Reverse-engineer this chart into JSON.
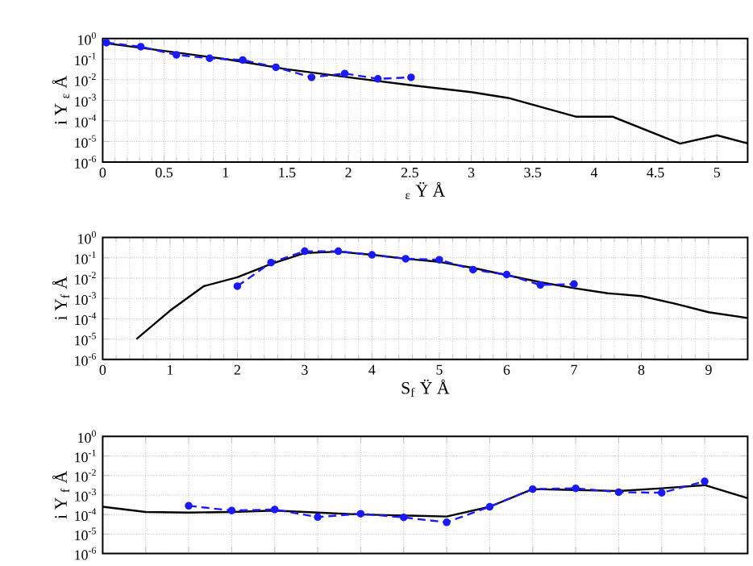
{
  "chart_data": [
    {
      "type": "line",
      "xlabel": "$_{ε}$ Ÿ Å",
      "ylabel": "i Y $_{ε}$ Å",
      "log": "y",
      "grid": true,
      "xlim": [
        0,
        5.25
      ],
      "xticks": [
        0,
        0.5,
        1,
        1.5,
        2,
        2.5,
        3,
        3.5,
        4,
        4.5,
        5
      ],
      "ylim": [
        1e-06,
        1
      ],
      "yticks": [
        {
          "value": 1,
          "label": "10$^{0}$"
        },
        {
          "value": 0.1,
          "label": "10$^{-1}$"
        },
        {
          "value": 0.01,
          "label": "10$^{-2}$"
        },
        {
          "value": 0.001,
          "label": "10$^{-3}$"
        },
        {
          "value": 0.0001,
          "label": "10$^{-4}$"
        },
        {
          "value": 1e-05,
          "label": "10$^{-5}$"
        },
        {
          "value": 1e-06,
          "label": "10$^{-6}$"
        }
      ],
      "series": [
        {
          "color": "#000000",
          "marker": "none",
          "line_style": "solid",
          "x": [
            0,
            0.5,
            1,
            1.5,
            2,
            2.5,
            3,
            3.3,
            3.85,
            4.15,
            4.7,
            5,
            5.25
          ],
          "values": [
            0.62,
            0.25,
            0.1,
            0.032,
            0.013,
            0.0055,
            0.0025,
            0.0013,
            0.00016,
            0.00016,
            7.9e-06,
            2e-05,
            8e-06
          ]
        },
        {
          "color": "#1a1aff",
          "marker": "circle",
          "line_style": "dashed",
          "x": [
            0.03,
            0.31,
            0.6,
            0.87,
            1.14,
            1.41,
            1.7,
            1.97,
            2.24,
            2.51
          ],
          "values": [
            0.63,
            0.4,
            0.16,
            0.11,
            0.09,
            0.04,
            0.013,
            0.02,
            0.011,
            0.013
          ]
        }
      ]
    },
    {
      "type": "line",
      "xlabel": "S$_{f}$ Ÿ Å",
      "ylabel": "i Y$_{f}$ Å",
      "log": "y",
      "grid": true,
      "xlim": [
        0,
        9.58
      ],
      "xticks": [
        0,
        1,
        2,
        3,
        4,
        5,
        6,
        7,
        8,
        9
      ],
      "ylim": [
        1e-06,
        1
      ],
      "yticks": [
        {
          "value": 1,
          "label": "10$^{0}$"
        },
        {
          "value": 0.1,
          "label": "10$^{-1}$"
        },
        {
          "value": 0.01,
          "label": "10$^{-2}$"
        },
        {
          "value": 0.001,
          "label": "10$^{-3}$"
        },
        {
          "value": 0.0001,
          "label": "10$^{-4}$"
        },
        {
          "value": 1e-05,
          "label": "10$^{-5}$"
        },
        {
          "value": 1e-06,
          "label": "10$^{-6}$"
        }
      ],
      "series": [
        {
          "color": "#000000",
          "marker": "none",
          "line_style": "solid",
          "x": [
            0.5,
            1,
            1.5,
            2,
            2.5,
            3,
            3.5,
            4,
            4.5,
            5,
            5.5,
            6,
            6.5,
            7,
            7.5,
            8,
            8.5,
            9,
            9.58
          ],
          "values": [
            1e-05,
            0.00025,
            0.004,
            0.011,
            0.05,
            0.17,
            0.2,
            0.14,
            0.09,
            0.063,
            0.032,
            0.014,
            0.0063,
            0.0032,
            0.0018,
            0.0013,
            0.00055,
            0.00021,
            0.00011
          ]
        },
        {
          "color": "#1a1aff",
          "marker": "circle",
          "line_style": "dashed",
          "x": [
            2,
            2.5,
            3,
            3.5,
            4,
            4.5,
            5,
            5.5,
            6,
            6.5,
            7
          ],
          "values": [
            0.004,
            0.058,
            0.21,
            0.21,
            0.14,
            0.09,
            0.08,
            0.026,
            0.015,
            0.0046,
            0.0051
          ]
        }
      ]
    },
    {
      "type": "line",
      "ylabel": "i Y $_{f}$ Å",
      "log": "y",
      "grid": true,
      "tick_labels": "y",
      "categories": [
        null,
        null,
        null,
        null,
        null,
        null,
        null,
        null,
        null,
        null,
        null,
        null,
        null,
        null,
        null,
        null
      ],
      "ylim": [
        1e-06,
        1
      ],
      "yticks": [
        {
          "value": 1,
          "label": "10$^{0}$"
        },
        {
          "value": 0.1,
          "label": "10$^{-1}$"
        },
        {
          "value": 0.01,
          "label": "10$^{-2}$"
        },
        {
          "value": 0.001,
          "label": "10$^{-3}$"
        },
        {
          "value": 0.0001,
          "label": "10$^{-4}$"
        },
        {
          "value": 1e-05,
          "label": "10$^{-5}$"
        },
        {
          "value": 1e-06,
          "label": "10$^{-6}$"
        }
      ],
      "series": [
        {
          "color": "#000000",
          "marker": "none",
          "line_style": "solid",
          "values": [
            0.00025,
            0.000135,
            0.000126,
            0.000135,
            0.00016,
            0.000126,
            0.0001,
            8.9e-05,
            7.9e-05,
            0.00025,
            0.002,
            0.0018,
            0.0016,
            0.0022,
            0.0032,
            0.00069
          ]
        },
        {
          "color": "#1a1aff",
          "marker": "circle",
          "line_style": "dashed",
          "values": [
            null,
            null,
            0.00028,
            0.00016,
            0.00018,
            7.4e-05,
            0.00011,
            7.1e-05,
            4e-05,
            0.00025,
            0.002,
            0.0022,
            0.0014,
            0.0013,
            0.005,
            null
          ]
        }
      ]
    }
  ]
}
